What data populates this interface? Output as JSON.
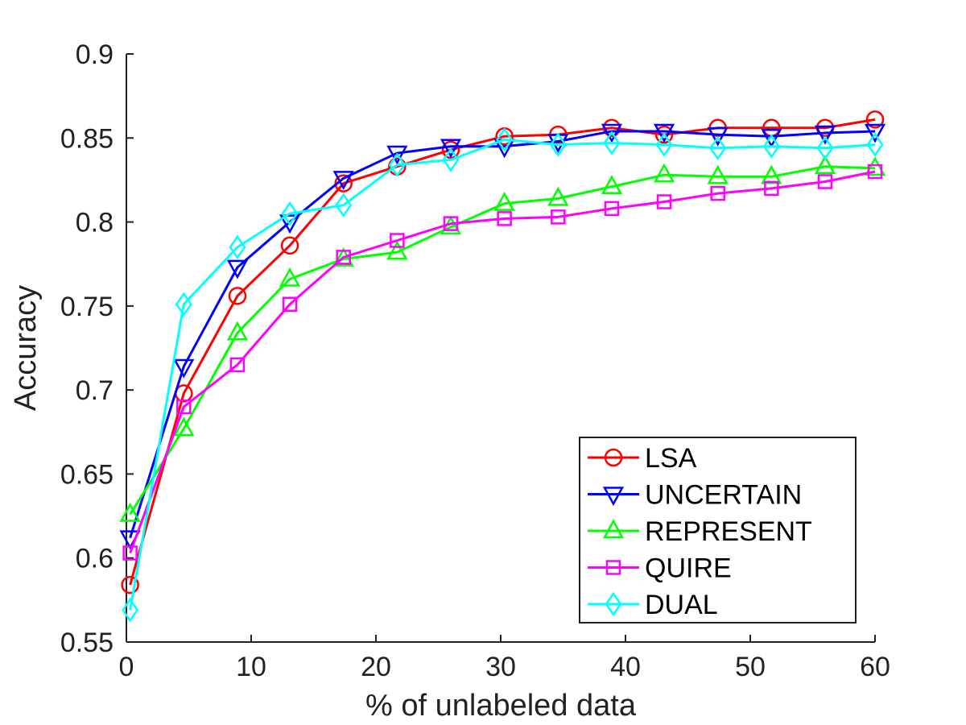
{
  "chart_data": {
    "type": "line",
    "title": "",
    "xlabel": "% of unlabeled data",
    "ylabel": "Accuracy",
    "xlim": [
      0,
      60
    ],
    "ylim": [
      0.55,
      0.9
    ],
    "xticks": [
      0,
      10,
      20,
      30,
      40,
      50,
      60
    ],
    "xtick_labels": [
      "0",
      "10",
      "20",
      "30",
      "40",
      "50",
      "60"
    ],
    "yticks": [
      0.55,
      0.6,
      0.65,
      0.7,
      0.75,
      0.8,
      0.85,
      0.9
    ],
    "ytick_labels": [
      "0.55",
      "0.6",
      "0.65",
      "0.7",
      "0.75",
      "0.8",
      "0.85",
      "0.9"
    ],
    "grid": false,
    "legend_position": "bottom-right",
    "x": [
      0.3,
      4.6,
      8.9,
      13.1,
      17.4,
      21.7,
      26.0,
      30.3,
      34.6,
      38.9,
      43.1,
      47.4,
      51.7,
      56.0,
      60.0
    ],
    "series": [
      {
        "name": "LSA",
        "color": "#ff0000",
        "marker": "circle",
        "values": [
          0.584,
          0.698,
          0.756,
          0.786,
          0.823,
          0.833,
          0.843,
          0.851,
          0.852,
          0.856,
          0.852,
          0.856,
          0.856,
          0.856,
          0.861
        ]
      },
      {
        "name": "UNCERTAIN",
        "color": "#0000ff",
        "marker": "triangle-down",
        "values": [
          0.612,
          0.714,
          0.773,
          0.8,
          0.826,
          0.841,
          0.845,
          0.845,
          0.848,
          0.854,
          0.854,
          0.852,
          0.851,
          0.853,
          0.854
        ]
      },
      {
        "name": "REPRESENT",
        "color": "#00ff00",
        "marker": "triangle-up",
        "values": [
          0.626,
          0.677,
          0.734,
          0.766,
          0.778,
          0.782,
          0.797,
          0.811,
          0.814,
          0.821,
          0.828,
          0.827,
          0.827,
          0.833,
          0.832
        ]
      },
      {
        "name": "QUIRE",
        "color": "#ff00ff",
        "marker": "square",
        "values": [
          0.603,
          0.69,
          0.715,
          0.751,
          0.779,
          0.789,
          0.799,
          0.802,
          0.803,
          0.808,
          0.812,
          0.817,
          0.82,
          0.824,
          0.83
        ]
      },
      {
        "name": "DUAL",
        "color": "#00ffff",
        "marker": "diamond",
        "values": [
          0.569,
          0.751,
          0.785,
          0.805,
          0.81,
          0.834,
          0.837,
          0.849,
          0.846,
          0.847,
          0.846,
          0.844,
          0.845,
          0.844,
          0.846
        ]
      }
    ]
  }
}
